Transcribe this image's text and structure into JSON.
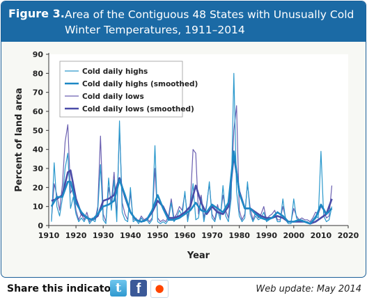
{
  "figure": {
    "label": "Figure 3.",
    "title": "Area of the Contiguous 48 States with Unusually Cold Winter Temperatures, 1911–2014"
  },
  "footer": {
    "share_label": "Share this indicator:",
    "update_text": "Web update: May 2014",
    "icons": [
      "twitter-icon",
      "facebook-icon",
      "reddit-icon"
    ]
  },
  "colors": {
    "header_bg": "#1b6aa5",
    "highs": "#2a98cc",
    "lows": "#6a5fb0",
    "highs_smoothed": "#1d88c4",
    "lows_smoothed": "#4a4ca8"
  },
  "chart_data": {
    "type": "line",
    "xlabel": "Year",
    "ylabel": "Percent of land area",
    "xlim": [
      1910,
      2020
    ],
    "ylim": [
      0,
      90
    ],
    "xticks": [
      1910,
      1920,
      1930,
      1940,
      1950,
      1960,
      1970,
      1980,
      1990,
      2000,
      2010,
      2020
    ],
    "yticks": [
      0,
      10,
      20,
      30,
      40,
      50,
      60,
      70,
      80,
      90
    ],
    "grid": false,
    "legend_position": "top-left",
    "series": [
      {
        "name": "Cold daily highs",
        "x": [
          1911,
          1912,
          1913,
          1914,
          1915,
          1916,
          1917,
          1918,
          1919,
          1920,
          1921,
          1922,
          1923,
          1924,
          1925,
          1926,
          1927,
          1928,
          1929,
          1930,
          1931,
          1932,
          1933,
          1934,
          1935,
          1936,
          1937,
          1938,
          1939,
          1940,
          1941,
          1942,
          1943,
          1944,
          1945,
          1946,
          1947,
          1948,
          1949,
          1950,
          1951,
          1952,
          1953,
          1954,
          1955,
          1956,
          1957,
          1958,
          1959,
          1960,
          1961,
          1962,
          1963,
          1964,
          1965,
          1966,
          1967,
          1968,
          1969,
          1970,
          1971,
          1972,
          1973,
          1974,
          1975,
          1976,
          1977,
          1978,
          1979,
          1980,
          1981,
          1982,
          1983,
          1984,
          1985,
          1986,
          1987,
          1988,
          1989,
          1990,
          1991,
          1992,
          1993,
          1994,
          1995,
          1996,
          1997,
          1998,
          1999,
          2000,
          2001,
          2002,
          2003,
          2004,
          2005,
          2006,
          2007,
          2008,
          2009,
          2010,
          2011,
          2012,
          2013,
          2014
        ],
        "values": [
          2,
          33,
          10,
          5,
          14,
          30,
          38,
          9,
          15,
          6,
          2,
          4,
          2,
          5,
          1,
          3,
          2,
          8,
          32,
          3,
          1,
          25,
          8,
          24,
          2,
          55,
          7,
          3,
          2,
          20,
          2,
          3,
          1,
          4,
          2,
          3,
          1,
          3,
          42,
          2,
          1,
          2,
          1,
          3,
          12,
          2,
          4,
          8,
          5,
          18,
          2,
          10,
          22,
          3,
          4,
          14,
          2,
          10,
          23,
          4,
          2,
          8,
          3,
          21,
          5,
          2,
          14,
          80,
          18,
          5,
          2,
          4,
          23,
          6,
          2,
          5,
          3,
          4,
          7,
          2,
          3,
          4,
          6,
          2,
          2,
          14,
          3,
          1,
          1,
          14,
          4,
          2,
          3,
          2,
          2,
          1,
          3,
          5,
          4,
          39,
          5,
          2,
          3,
          10
        ]
      },
      {
        "name": "Cold daily highs (smoothed)",
        "x": [
          1911,
          1913,
          1915,
          1917,
          1918,
          1920,
          1922,
          1924,
          1926,
          1928,
          1930,
          1932,
          1934,
          1936,
          1938,
          1940,
          1942,
          1944,
          1946,
          1948,
          1950,
          1952,
          1954,
          1956,
          1958,
          1960,
          1962,
          1964,
          1966,
          1968,
          1970,
          1972,
          1974,
          1976,
          1978,
          1980,
          1982,
          1984,
          1986,
          1988,
          1990,
          1992,
          1994,
          1996,
          1998,
          2000,
          2002,
          2004,
          2006,
          2008,
          2010,
          2012,
          2014
        ],
        "values": [
          10,
          15,
          15,
          23,
          23,
          12,
          7,
          4,
          3,
          6,
          10,
          11,
          13,
          24,
          16,
          7,
          3,
          2,
          3,
          8,
          16,
          9,
          3,
          3,
          4,
          6,
          8,
          12,
          8,
          7,
          11,
          9,
          7,
          12,
          39,
          17,
          9,
          9,
          6,
          4,
          3,
          4,
          7,
          5,
          2,
          2,
          3,
          2,
          1,
          4,
          11,
          6,
          9
        ]
      },
      {
        "name": "Cold daily lows",
        "x": [
          1911,
          1912,
          1913,
          1914,
          1915,
          1916,
          1917,
          1918,
          1919,
          1920,
          1921,
          1922,
          1923,
          1924,
          1925,
          1926,
          1927,
          1928,
          1929,
          1930,
          1931,
          1932,
          1933,
          1934,
          1935,
          1936,
          1937,
          1938,
          1939,
          1940,
          1941,
          1942,
          1943,
          1944,
          1945,
          1946,
          1947,
          1948,
          1949,
          1950,
          1951,
          1952,
          1953,
          1954,
          1955,
          1956,
          1957,
          1958,
          1959,
          1960,
          1961,
          1962,
          1963,
          1964,
          1965,
          1966,
          1967,
          1968,
          1969,
          1970,
          1971,
          1972,
          1973,
          1974,
          1975,
          1976,
          1977,
          1978,
          1979,
          1980,
          1981,
          1982,
          1983,
          1984,
          1985,
          1986,
          1987,
          1988,
          1989,
          1990,
          1991,
          1992,
          1993,
          1994,
          1995,
          1996,
          1997,
          1998,
          1999,
          2000,
          2001,
          2002,
          2003,
          2004,
          2005,
          2006,
          2007,
          2008,
          2009,
          2010,
          2011,
          2012,
          2013,
          2014
        ],
        "values": [
          3,
          22,
          16,
          8,
          21,
          44,
          53,
          17,
          20,
          8,
          3,
          6,
          3,
          7,
          2,
          4,
          3,
          10,
          47,
          6,
          2,
          20,
          12,
          28,
          5,
          52,
          12,
          6,
          3,
          17,
          3,
          4,
          2,
          5,
          3,
          4,
          2,
          4,
          30,
          4,
          2,
          3,
          2,
          5,
          14,
          4,
          6,
          10,
          8,
          17,
          4,
          12,
          40,
          38,
          6,
          16,
          4,
          11,
          22,
          6,
          3,
          11,
          5,
          16,
          8,
          4,
          18,
          50,
          63,
          8,
          3,
          6,
          22,
          9,
          3,
          7,
          4,
          6,
          10,
          3,
          5,
          6,
          8,
          3,
          3,
          10,
          4,
          2,
          2,
          9,
          5,
          3,
          4,
          3,
          3,
          2,
          4,
          7,
          6,
          10,
          8,
          4,
          5,
          21
        ]
      },
      {
        "name": "Cold daily lows (smoothed)",
        "x": [
          1911,
          1913,
          1915,
          1917,
          1918,
          1920,
          1922,
          1924,
          1926,
          1928,
          1930,
          1932,
          1934,
          1936,
          1938,
          1940,
          1942,
          1944,
          1946,
          1948,
          1950,
          1952,
          1954,
          1956,
          1958,
          1960,
          1962,
          1964,
          1966,
          1968,
          1970,
          1972,
          1974,
          1976,
          1978,
          1980,
          1982,
          1984,
          1986,
          1988,
          1990,
          1992,
          1994,
          1996,
          1998,
          2000,
          2002,
          2004,
          2006,
          2008,
          2010,
          2012,
          2014
        ],
        "values": [
          13,
          14,
          16,
          28,
          29,
          14,
          6,
          4,
          3,
          5,
          13,
          14,
          16,
          25,
          15,
          7,
          3,
          2,
          3,
          7,
          13,
          10,
          4,
          4,
          5,
          7,
          10,
          21,
          12,
          6,
          10,
          7,
          6,
          10,
          37,
          18,
          9,
          9,
          7,
          5,
          4,
          4,
          5,
          4,
          2,
          2,
          2,
          2,
          1,
          2,
          4,
          6,
          14
        ]
      }
    ]
  }
}
